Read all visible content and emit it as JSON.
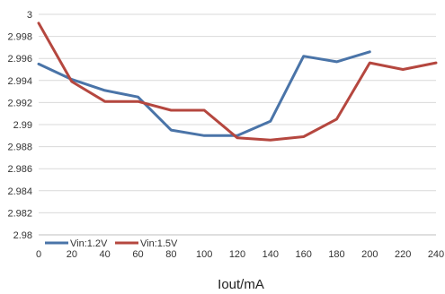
{
  "chart_data": {
    "type": "line",
    "title": "",
    "xlabel": "Iout/mA",
    "ylabel": "",
    "x": [
      0,
      20,
      40,
      60,
      80,
      100,
      120,
      140,
      160,
      180,
      200,
      220,
      240
    ],
    "xlim": [
      0,
      240
    ],
    "ylim": [
      2.98,
      3.0
    ],
    "x_ticks": [
      "0",
      "20",
      "40",
      "60",
      "80",
      "100",
      "120",
      "140",
      "160",
      "180",
      "200",
      "220",
      "240"
    ],
    "y_ticks": [
      "2.98",
      "2.982",
      "2.984",
      "2.986",
      "2.988",
      "2.99",
      "2.992",
      "2.994",
      "2.996",
      "2.998",
      "3"
    ],
    "grid": "horizontal",
    "legend_position": "bottom-left",
    "series": [
      {
        "name": "Vin:1.2V",
        "color": "#4a74a8",
        "x": [
          0,
          20,
          40,
          60,
          80,
          100,
          120,
          140,
          160,
          180,
          200
        ],
        "values": [
          2.9955,
          2.9941,
          2.9931,
          2.9925,
          2.9895,
          2.989,
          2.989,
          2.9903,
          2.9962,
          2.9957,
          2.9966
        ]
      },
      {
        "name": "Vin:1.5V",
        "color": "#b5473f",
        "x": [
          0,
          20,
          40,
          60,
          80,
          100,
          120,
          140,
          160,
          180,
          200,
          220,
          240
        ],
        "values": [
          2.9992,
          2.9939,
          2.9921,
          2.9921,
          2.9913,
          2.9913,
          2.9888,
          2.9886,
          2.9889,
          2.9905,
          2.9956,
          2.995,
          2.9956
        ]
      }
    ]
  }
}
